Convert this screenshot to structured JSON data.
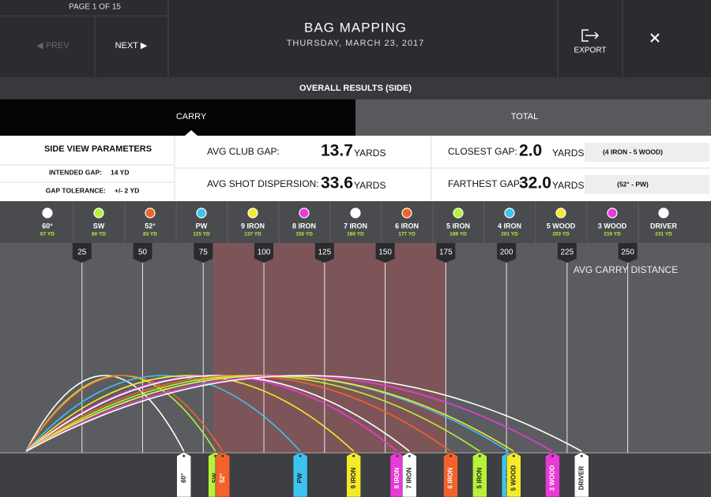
{
  "header": {
    "page": "PAGE 1 OF 15",
    "prev": "◀ PREV",
    "next": "NEXT ▶",
    "title": "BAG MAPPING",
    "date": "THURSDAY, MARCH 23, 2017",
    "export": "EXPORT"
  },
  "section_title": "OVERALL RESULTS (SIDE)",
  "tabs": [
    "CARRY",
    "TOTAL"
  ],
  "params": {
    "title": "SIDE VIEW PARAMETERS",
    "rows": [
      [
        "INTENDED GAP:",
        "14 YD"
      ],
      [
        "GAP TOLERANCE:",
        "+/- 2 YD"
      ]
    ]
  },
  "stats": [
    {
      "label": "AVG CLUB GAP:",
      "value": "13.7",
      "unit": "YARDS"
    },
    {
      "label": "AVG SHOT DISPERSION:",
      "value": "33.6",
      "unit": "YARDS"
    },
    {
      "label": "CLOSEST GAP:",
      "value": "2.0",
      "unit": "YARDS",
      "note": "(4 IRON - 5 WOOD)"
    },
    {
      "label": "FARTHEST GAP:",
      "value": "32.0",
      "unit": "YARDS",
      "note": "(52° - PW)"
    }
  ],
  "chart_data": {
    "type": "trajectory",
    "x_label": "AVG CARRY DISTANCE",
    "xlim": [
      0,
      284
    ],
    "xticks": [
      25,
      50,
      75,
      100,
      125,
      150,
      175,
      200,
      225,
      250
    ],
    "categories": [
      "60°",
      "SW",
      "52°",
      "PW",
      "9 IRON",
      "8 IRON",
      "7 IRON",
      "6 IRON",
      "5 IRON",
      "4 IRON",
      "5 WOOD",
      "3 WOOD",
      "DRIVER"
    ],
    "colors": [
      "#ffffff",
      "#b6f23a",
      "#f2622a",
      "#3cc4f0",
      "#f4ea2a",
      "#e83ad8",
      "#ffffff",
      "#f2622a",
      "#b6f23a",
      "#3cc4f0",
      "#f4ea2a",
      "#e83ad8",
      "#ffffff"
    ],
    "values": [
      67,
      80,
      83,
      115,
      137,
      155,
      160,
      177,
      189,
      201,
      203,
      219,
      231
    ],
    "value_labels": [
      "67 YD",
      "80 YD",
      "83 YD",
      "115 YD",
      "137 YD",
      "155 YD",
      "160 YD",
      "177 YD",
      "189 YD",
      "201 YD",
      "203 YD",
      "219 YD",
      "231 YD"
    ]
  }
}
